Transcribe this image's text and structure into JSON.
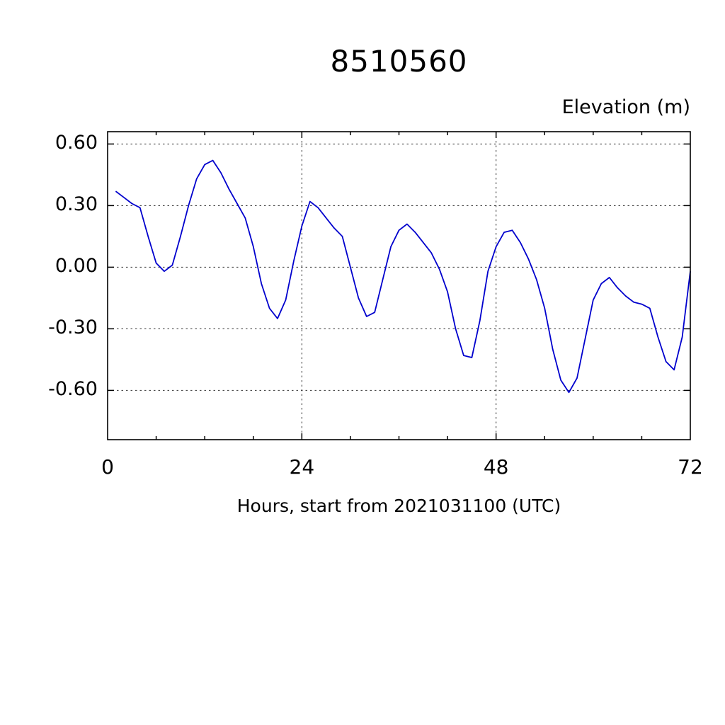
{
  "chart_data": {
    "type": "line",
    "title": "8510560",
    "ylabel": "Elevation (m)",
    "xlabel": "Hours, start from 2021031100 (UTC)",
    "xlim": [
      0,
      72
    ],
    "ylim": [
      -0.84,
      0.66
    ],
    "x_ticks": [
      0,
      24,
      48,
      72
    ],
    "x_tick_labels": [
      "0",
      "24",
      "48",
      "72"
    ],
    "x_minor_tick_interval": 6,
    "y_ticks": [
      0.6,
      0.3,
      0.0,
      -0.3,
      -0.6
    ],
    "y_tick_labels": [
      "0.60",
      "0.30",
      "0.00",
      "-0.30",
      "-0.60"
    ],
    "grid": "dashed",
    "legend": "none",
    "line_color": "#0000CD",
    "frame_color": "#000000",
    "series": [
      {
        "name": "elevation",
        "x": [
          1,
          2,
          3,
          4,
          5,
          6,
          7,
          8,
          9,
          10,
          11,
          12,
          13,
          14,
          15,
          16,
          17,
          18,
          19,
          20,
          21,
          22,
          23,
          24,
          25,
          26,
          27,
          28,
          29,
          30,
          31,
          32,
          33,
          34,
          35,
          36,
          37,
          38,
          39,
          40,
          41,
          42,
          43,
          44,
          45,
          46,
          47,
          48,
          49,
          50,
          51,
          52,
          53,
          54,
          55,
          56,
          57,
          58,
          59,
          60,
          61,
          62,
          63,
          64,
          65,
          66,
          67,
          68,
          69,
          70,
          71,
          72
        ],
        "y": [
          0.37,
          0.34,
          0.31,
          0.29,
          0.15,
          0.02,
          -0.02,
          0.01,
          0.15,
          0.3,
          0.43,
          0.5,
          0.52,
          0.46,
          0.38,
          0.31,
          0.24,
          0.1,
          -0.08,
          -0.2,
          -0.25,
          -0.16,
          0.03,
          0.2,
          0.32,
          0.29,
          0.24,
          0.19,
          0.15,
          0.0,
          -0.15,
          -0.24,
          -0.22,
          -0.06,
          0.1,
          0.18,
          0.21,
          0.17,
          0.12,
          0.07,
          -0.01,
          -0.12,
          -0.3,
          -0.43,
          -0.44,
          -0.26,
          -0.02,
          0.1,
          0.17,
          0.18,
          0.12,
          0.04,
          -0.06,
          -0.2,
          -0.4,
          -0.55,
          -0.61,
          -0.54,
          -0.35,
          -0.16,
          -0.08,
          -0.05,
          -0.1,
          -0.14,
          -0.17,
          -0.18,
          -0.2,
          -0.34,
          -0.46,
          -0.5,
          -0.34,
          -0.02
        ]
      }
    ]
  }
}
